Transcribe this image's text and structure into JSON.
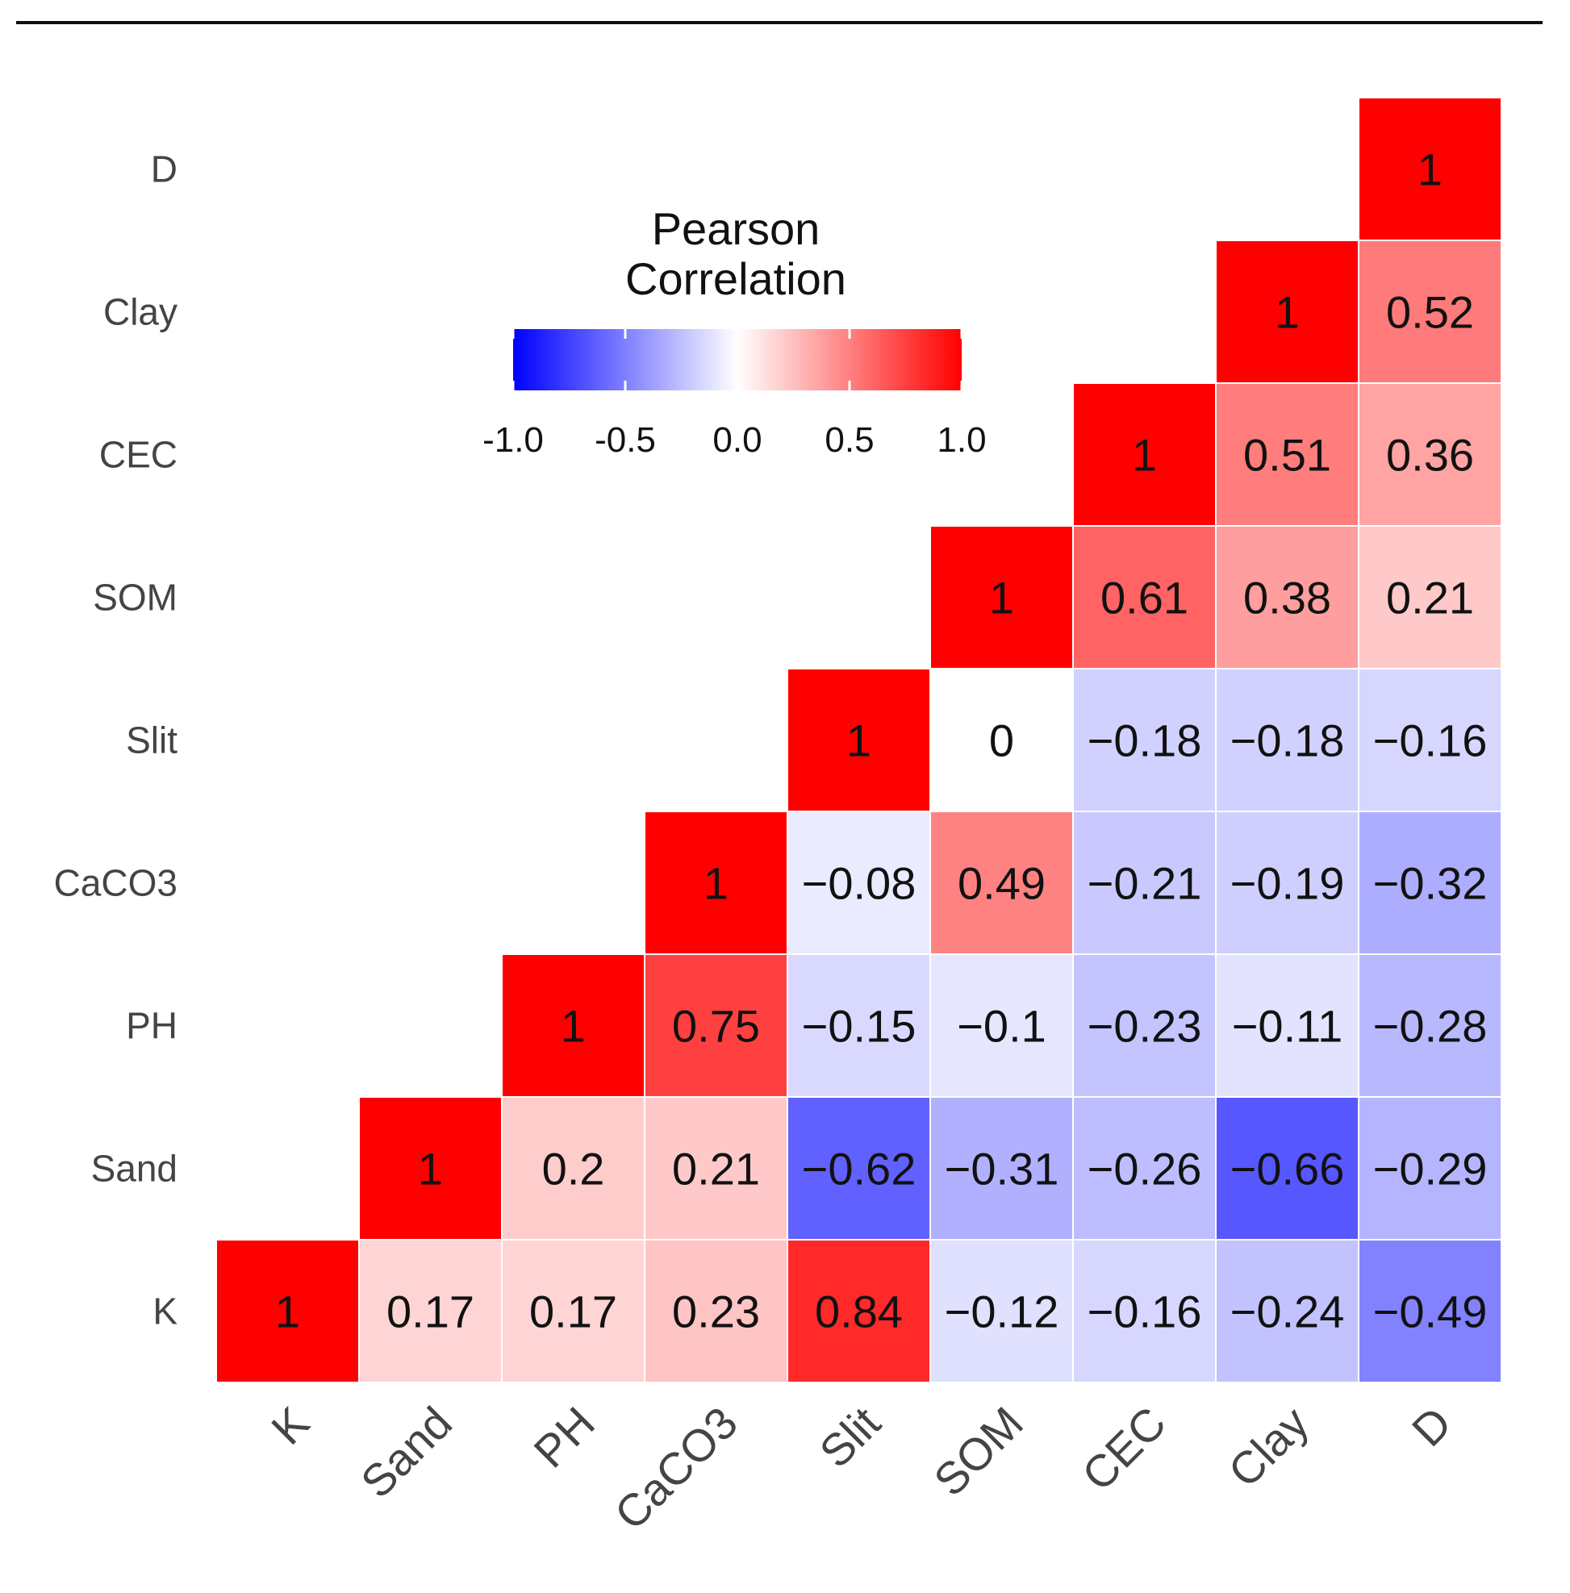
{
  "chart_data": {
    "type": "heatmap",
    "variables": [
      "K",
      "Sand",
      "PH",
      "CaCO3",
      "Slit",
      "SOM",
      "CEC",
      "Clay",
      "D"
    ],
    "matrix": [
      [
        1,
        0.17,
        0.17,
        0.23,
        0.84,
        -0.12,
        -0.16,
        -0.24,
        -0.49
      ],
      [
        null,
        1,
        0.2,
        0.21,
        -0.62,
        -0.31,
        -0.26,
        -0.66,
        -0.29
      ],
      [
        null,
        null,
        1,
        0.75,
        -0.15,
        -0.1,
        -0.23,
        -0.11,
        -0.28
      ],
      [
        null,
        null,
        null,
        1,
        -0.08,
        0.49,
        -0.21,
        -0.19,
        -0.32
      ],
      [
        null,
        null,
        null,
        null,
        1,
        0,
        -0.18,
        -0.18,
        -0.16
      ],
      [
        null,
        null,
        null,
        null,
        null,
        1,
        0.61,
        0.38,
        0.21
      ],
      [
        null,
        null,
        null,
        null,
        null,
        null,
        1,
        0.51,
        0.36
      ],
      [
        null,
        null,
        null,
        null,
        null,
        null,
        null,
        1,
        0.52
      ],
      [
        null,
        null,
        null,
        null,
        null,
        null,
        null,
        null,
        1
      ]
    ],
    "legend": {
      "title_line1": "Pearson",
      "title_line2": "Correlation",
      "range": [
        -1,
        1
      ],
      "ticks": [
        "-1.0",
        "-0.5",
        "0.0",
        "0.5",
        "1.0"
      ],
      "placement": "top-left"
    },
    "colors": {
      "low": "#0000ff",
      "mid": "#ffffff",
      "high": "#ff0000"
    }
  }
}
